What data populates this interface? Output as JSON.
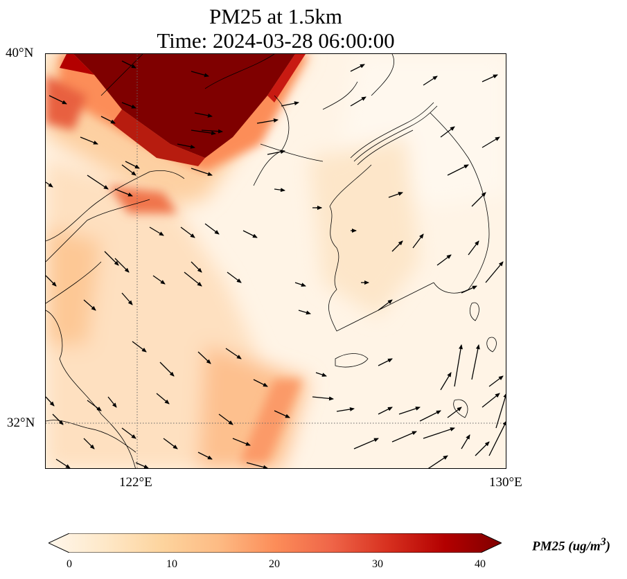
{
  "title": {
    "line1": "PM25 at 1.5km",
    "line2": "Time: 2024-03-28 06:00:00"
  },
  "map": {
    "extent": {
      "lon": [
        120,
        130
      ],
      "lat": [
        31,
        40
      ]
    },
    "lat_ticks": [
      {
        "value": 40,
        "label": "40°N"
      },
      {
        "value": 32,
        "label": "32°N"
      }
    ],
    "lon_ticks": [
      {
        "value": 122,
        "label": "122°E"
      },
      {
        "value": 130,
        "label": "130°E"
      }
    ],
    "gridlines": "dotted",
    "field": "PM25 concentration (shaded) with wind vectors (arrows)"
  },
  "colorbar": {
    "label": "PM25 (ug/m",
    "label_sup": "3",
    "label_close": ")",
    "min": 0,
    "max": 40,
    "ticks": [
      "0",
      "10",
      "20",
      "30",
      "40"
    ],
    "extend": "both",
    "colormap": [
      "#fff7ec",
      "#fee8c8",
      "#fdd49e",
      "#fdbb84",
      "#fc8d59",
      "#ef6548",
      "#d7301f",
      "#b30000",
      "#7f0000"
    ]
  }
}
